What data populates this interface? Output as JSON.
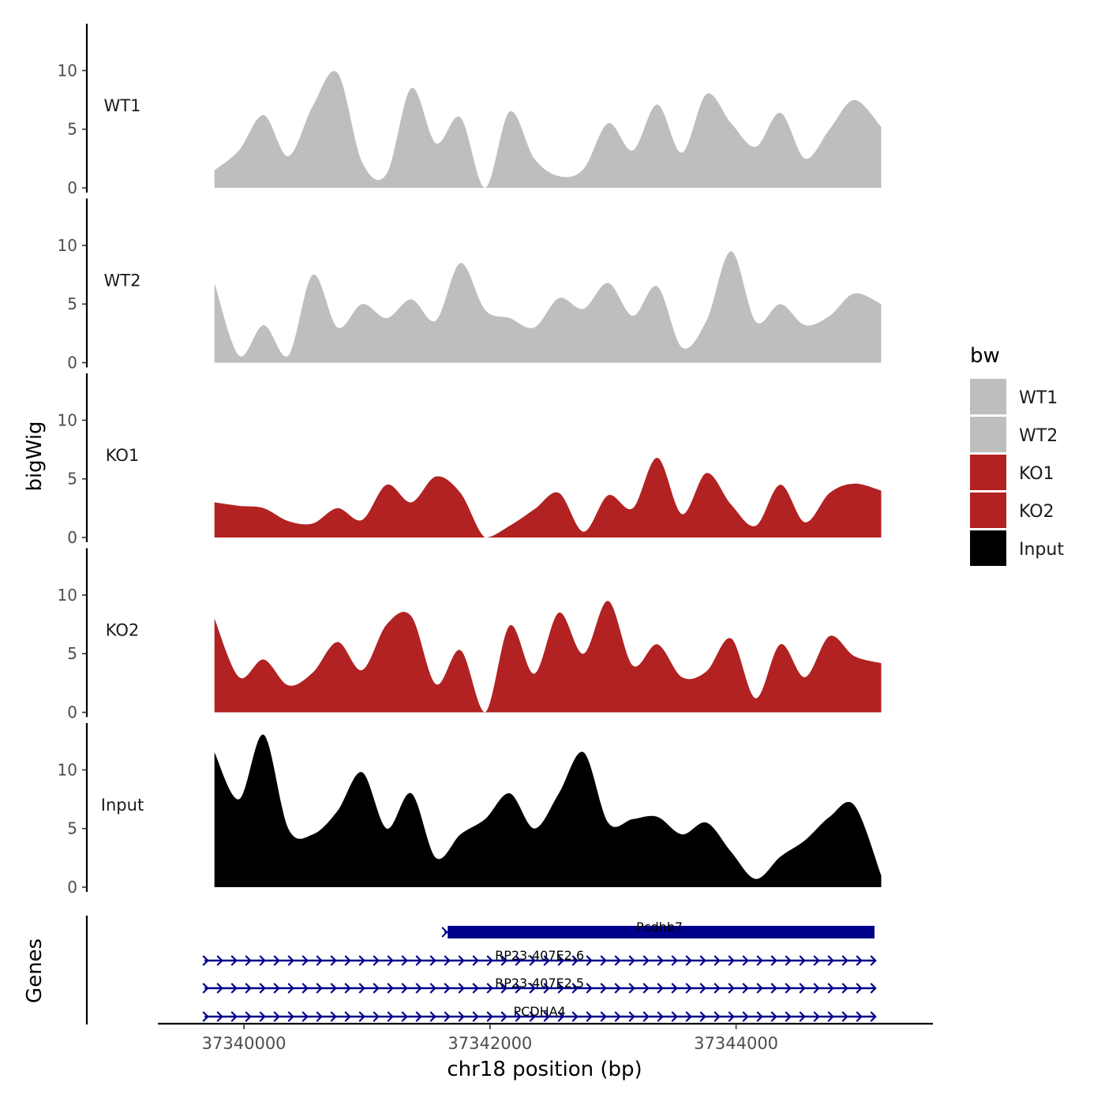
{
  "chart_data": {
    "type": "area",
    "title": "",
    "ylabel": "bigWig",
    "genes_label": "Genes",
    "xlabel": "chr18 position (bp)",
    "xlim": [
      37339300,
      37345600
    ],
    "ylim": [
      0,
      14
    ],
    "yticks": [
      0,
      5,
      10
    ],
    "xticks": [
      37340000,
      37342000,
      37344000
    ],
    "xtick_labels": [
      "37340000",
      "37342000",
      "37344000"
    ],
    "legend": {
      "title": "bw",
      "position": "right",
      "entries": [
        {
          "label": "WT1",
          "color": "#bebebe"
        },
        {
          "label": "WT2",
          "color": "#bebebe"
        },
        {
          "label": "KO1",
          "color": "#b22222"
        },
        {
          "label": "KO2",
          "color": "#b22222"
        },
        {
          "label": "Input",
          "color": "#000000"
        }
      ]
    },
    "x": [
      37339760,
      37339960,
      37340160,
      37340360,
      37340560,
      37340760,
      37340960,
      37341160,
      37341360,
      37341560,
      37341760,
      37341960,
      37342160,
      37342360,
      37342560,
      37342760,
      37342960,
      37343160,
      37343360,
      37343560,
      37343760,
      37343960,
      37344160,
      37344360,
      37344560,
      37344760,
      37344960,
      37345180
    ],
    "series": [
      {
        "name": "WT1",
        "color": "#bebebe",
        "values": [
          1.5,
          3.2,
          6.2,
          2.7,
          7.0,
          9.8,
          2.2,
          1.2,
          8.5,
          3.8,
          6.0,
          0.0,
          6.5,
          2.5,
          1.0,
          1.6,
          5.5,
          3.2,
          7.1,
          3.0,
          8.0,
          5.5,
          3.5,
          6.4,
          2.5,
          5.0,
          7.5,
          5.2
        ]
      },
      {
        "name": "WT2",
        "color": "#bebebe",
        "values": [
          6.8,
          0.6,
          3.2,
          0.6,
          7.5,
          3.0,
          5.0,
          3.8,
          5.4,
          3.6,
          8.5,
          4.5,
          3.8,
          3.0,
          5.5,
          4.6,
          6.8,
          4.0,
          6.5,
          1.3,
          3.6,
          9.5,
          3.5,
          5.0,
          3.2,
          4.0,
          5.9,
          5.0
        ]
      },
      {
        "name": "KO1",
        "color": "#b22222",
        "values": [
          3.0,
          2.7,
          2.5,
          1.4,
          1.2,
          2.5,
          1.5,
          4.5,
          3.0,
          5.2,
          3.8,
          0.0,
          1.0,
          2.4,
          3.8,
          0.5,
          3.6,
          2.5,
          6.8,
          2.0,
          5.5,
          2.8,
          1.0,
          4.5,
          1.3,
          3.8,
          4.6,
          4.0
        ]
      },
      {
        "name": "KO2",
        "color": "#b22222",
        "values": [
          8.0,
          3.0,
          4.5,
          2.3,
          3.4,
          6.0,
          3.6,
          7.5,
          8.2,
          2.4,
          5.3,
          0.0,
          7.4,
          3.3,
          8.5,
          5.0,
          9.5,
          4.0,
          5.8,
          3.0,
          3.5,
          6.3,
          1.2,
          5.8,
          3.0,
          6.5,
          4.8,
          4.2
        ]
      },
      {
        "name": "Input",
        "color": "#000000",
        "values": [
          11.5,
          7.5,
          13.0,
          5.0,
          4.5,
          6.5,
          9.8,
          5.0,
          8.0,
          2.5,
          4.5,
          5.8,
          8.0,
          5.0,
          8.0,
          11.5,
          5.5,
          5.8,
          6.0,
          4.5,
          5.5,
          3.0,
          0.7,
          2.6,
          4.0,
          6.0,
          7.0,
          1.0
        ]
      }
    ],
    "genes": [
      {
        "name": "Pcdhb7",
        "start": 37341630,
        "end": 37345125,
        "style": "block",
        "color": "#00008b"
      },
      {
        "name": "RP23-407E2.6",
        "start": 37339680,
        "end": 37345125,
        "style": "arrows",
        "color": "#00008b"
      },
      {
        "name": "RP23-407E2.5",
        "start": 37339680,
        "end": 37345125,
        "style": "arrows",
        "color": "#00008b"
      },
      {
        "name": "PCDHA4",
        "start": 37339680,
        "end": 37345125,
        "style": "arrows",
        "color": "#00008b"
      }
    ]
  }
}
